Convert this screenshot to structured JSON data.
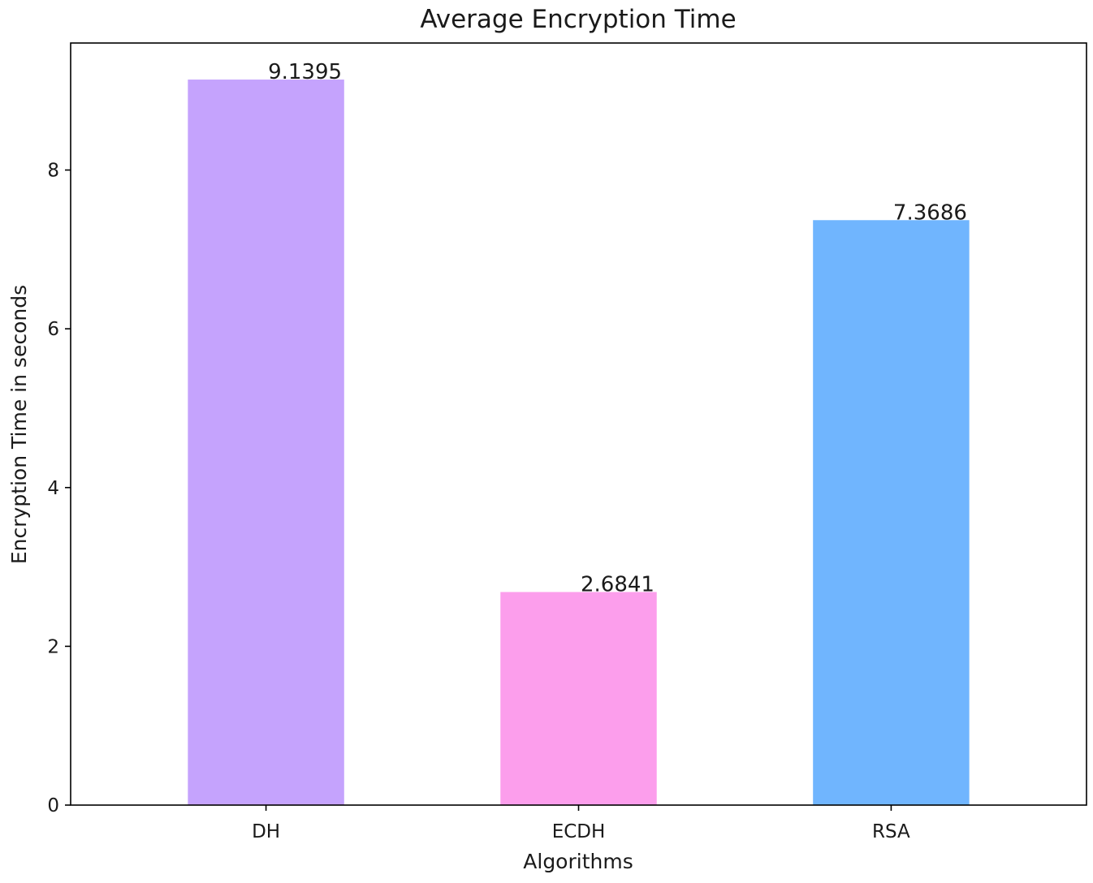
{
  "chart_data": {
    "type": "bar",
    "title": "Average Encryption Time",
    "xlabel": "Algorithms",
    "ylabel": "Encryption Time in seconds",
    "categories": [
      "DH",
      "ECDH",
      "RSA"
    ],
    "values": [
      9.1395,
      2.6841,
      7.3686
    ],
    "data_labels": [
      "9.1395",
      "2.6841",
      "7.3686"
    ],
    "colors": [
      "#c5a3fd",
      "#fc9eec",
      "#70b5fe"
    ],
    "ylim": [
      0,
      9.6
    ],
    "yticks": [
      0,
      2,
      4,
      6,
      8
    ],
    "ytick_labels": [
      "0",
      "2",
      "4",
      "6",
      "8"
    ],
    "grid": false,
    "legend": "none"
  }
}
